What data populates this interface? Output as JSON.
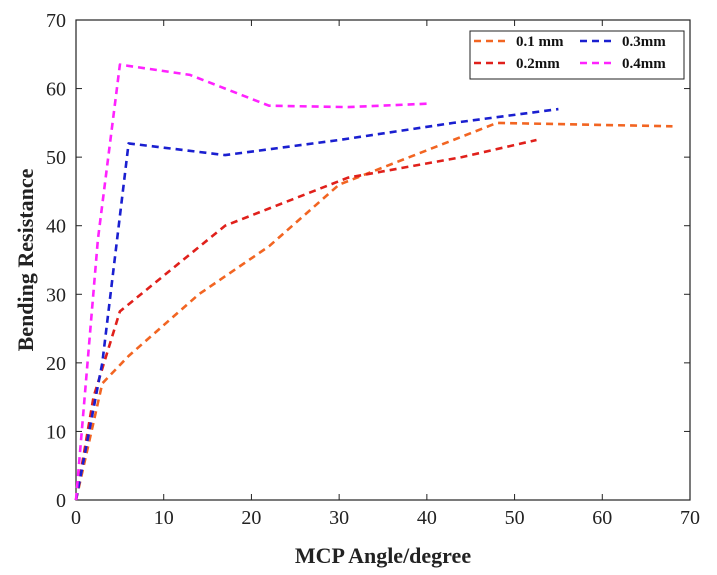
{
  "chart_data": {
    "type": "line",
    "title": "",
    "xlabel": "MCP Angle/degree",
    "ylabel": "Bending Resistance",
    "xlim": [
      0,
      70
    ],
    "ylim": [
      0,
      70
    ],
    "xticks": [
      0,
      10,
      20,
      30,
      40,
      50,
      60,
      70
    ],
    "yticks": [
      0,
      10,
      20,
      30,
      40,
      50,
      60,
      70
    ],
    "grid": false,
    "legend_position": "top-right",
    "series": [
      {
        "name": "0.1 mm",
        "color": "#f26522",
        "style": "dashed",
        "x": [
          0,
          3,
          6,
          14,
          22,
          30,
          48,
          68
        ],
        "y": [
          0,
          17,
          21,
          30,
          37,
          46,
          55,
          54.5
        ]
      },
      {
        "name": "0.2mm",
        "color": "#e0201b",
        "style": "dashed",
        "x": [
          0,
          2,
          5,
          17,
          31,
          44,
          52.5
        ],
        "y": [
          0,
          15,
          27.5,
          40,
          47,
          50,
          52.5
        ]
      },
      {
        "name": "0.3mm",
        "color": "#1a1fd0",
        "style": "dashed",
        "x": [
          0,
          3,
          6,
          17,
          30,
          43,
          55
        ],
        "y": [
          0,
          20,
          52,
          50.3,
          52.5,
          55,
          57
        ]
      },
      {
        "name": "0.4mm",
        "color": "#ff22ff",
        "style": "dashed",
        "x": [
          0,
          2.5,
          5,
          13,
          22,
          31,
          40
        ],
        "y": [
          0,
          38,
          63.5,
          62,
          57.5,
          57.3,
          57.8
        ]
      }
    ]
  }
}
